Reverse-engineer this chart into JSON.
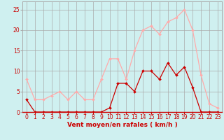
{
  "hours": [
    0,
    1,
    2,
    3,
    4,
    5,
    6,
    7,
    8,
    9,
    10,
    11,
    12,
    13,
    14,
    15,
    16,
    17,
    18,
    19,
    20,
    21,
    22,
    23
  ],
  "vent_moyen": [
    3,
    0,
    0,
    0,
    0,
    0,
    0,
    0,
    0,
    0,
    1,
    7,
    7,
    5,
    10,
    10,
    8,
    12,
    9,
    11,
    6,
    0,
    0,
    0
  ],
  "en_rafales": [
    8,
    3,
    3,
    4,
    5,
    3,
    5,
    3,
    3,
    8,
    13,
    13,
    8,
    15,
    20,
    21,
    19,
    22,
    23,
    25,
    20,
    9,
    2,
    1
  ],
  "color_moyen": "#cc0000",
  "color_rafales": "#ffaaaa",
  "background_color": "#cff0f0",
  "grid_color": "#aaaaaa",
  "xlabel": "Vent moyen/en rafales ( km/h )",
  "ylim": [
    0,
    27
  ],
  "xlim": [
    -0.5,
    23.5
  ],
  "yticks": [
    0,
    5,
    10,
    15,
    20,
    25
  ],
  "xticks": [
    0,
    1,
    2,
    3,
    4,
    5,
    6,
    7,
    8,
    9,
    10,
    11,
    12,
    13,
    14,
    15,
    16,
    17,
    18,
    19,
    20,
    21,
    22,
    23
  ],
  "tick_fontsize": 5.5,
  "xlabel_fontsize": 6.5,
  "markersize": 2.0,
  "linewidth": 0.9
}
